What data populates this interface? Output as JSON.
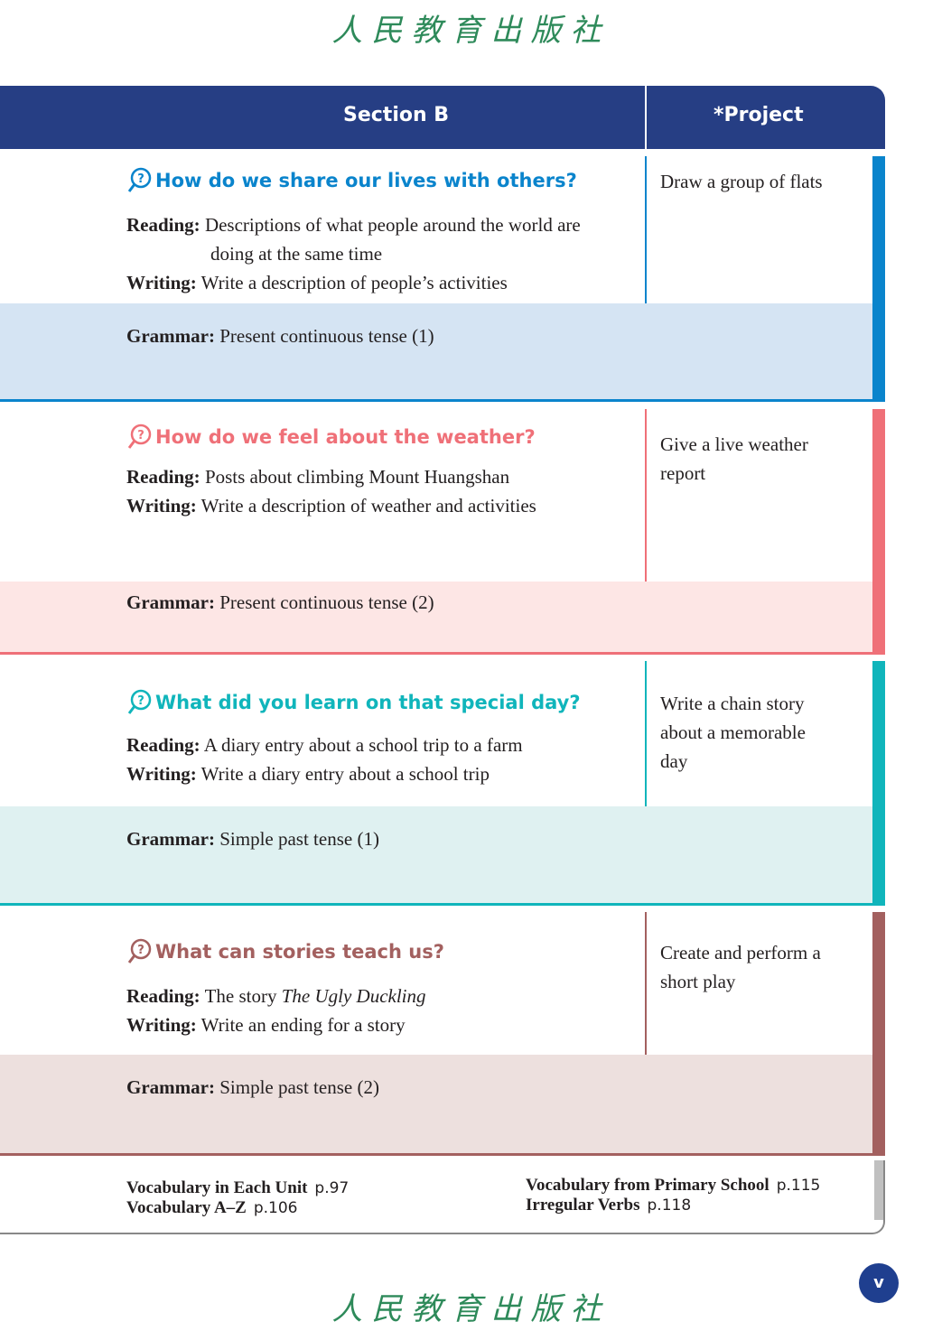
{
  "publisher_logo": "人民教育出版社",
  "header": {
    "section": "Section B",
    "project": "*Project"
  },
  "colors": {
    "header": "#263e84",
    "blue": "#0a84cc",
    "pink": "#ef7078",
    "teal": "#10b5bb",
    "brown": "#a3605f"
  },
  "sections": [
    {
      "question": "How do we share our lives with others?",
      "reading_label": "Reading:",
      "reading": "Descriptions of what people around the world are",
      "reading2": "doing at the same time",
      "writing_label": "Writing:",
      "writing": "Write a description of people’s activities",
      "grammar_label": "Grammar:",
      "grammar": "Present continuous tense (1)",
      "project": "Draw a group of flats"
    },
    {
      "question": "How do we feel about the weather?",
      "reading_label": "Reading:",
      "reading": "Posts about climbing Mount Huangshan",
      "writing_label": "Writing:",
      "writing": "Write a description of weather and  activities",
      "grammar_label": "Grammar:",
      "grammar": "Present continuous tense (2)",
      "project": "Give a live weather report"
    },
    {
      "question": "What did you learn on that special day?",
      "reading_label": "Reading:",
      "reading": "A diary entry about a school trip to a farm",
      "writing_label": "Writing:",
      "writing": "Write a diary entry about a school trip",
      "grammar_label": "Grammar:",
      "grammar": "Simple past tense (1)",
      "project": "Write a chain story about a memorable day"
    },
    {
      "question": "What can stories teach us?",
      "reading_label": "Reading:",
      "reading_prefix": "The story ",
      "reading_title": "The Ugly Duckling",
      "writing_label": "Writing:",
      "writing": "Write an ending for a story",
      "grammar_label": "Grammar:",
      "grammar": "Simple past tense (2)",
      "project": "Create and perform a short play"
    }
  ],
  "footer": [
    {
      "label": "Vocabulary  in Each Unit",
      "page": "p.97"
    },
    {
      "label": "Vocabulary  A–Z",
      "page": "p.106"
    },
    {
      "label": "Vocabulary from Primary School",
      "page": "p.115"
    },
    {
      "label": "Irregular Verbs",
      "page": "p.118"
    }
  ],
  "page_number": "v"
}
